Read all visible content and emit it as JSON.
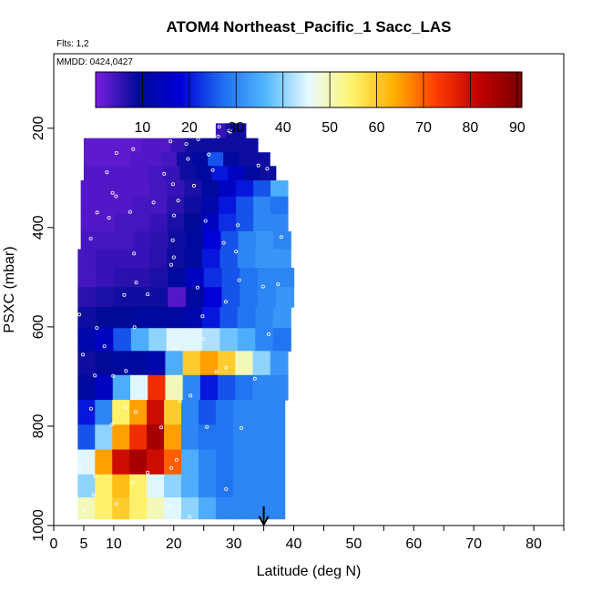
{
  "chart_data": {
    "type": "heatmap",
    "title": "ATOM4 Northeast_Pacific_1 Sacc_LAS",
    "notes": [
      "Flts: 1,2",
      "MMDD: 0424,0427"
    ],
    "xlabel": "Latitude (deg N)",
    "ylabel": "PSXC (mbar)",
    "xlim": [
      0,
      85
    ],
    "ylim": [
      1000,
      50
    ],
    "y_inverted": true,
    "x_ticks": [
      0,
      5,
      10,
      20,
      30,
      40,
      50,
      60,
      70,
      80
    ],
    "y_ticks": [
      200,
      400,
      600,
      800,
      1000
    ],
    "colorbar": {
      "ticks": [
        10,
        20,
        30,
        40,
        50,
        60,
        70,
        80,
        90
      ],
      "range": [
        0,
        91
      ],
      "colors": [
        "#7a1fe0",
        "#000a96",
        "#0000d8",
        "#1e6ff0",
        "#54b8ff",
        "#e8fbff",
        "#fff470",
        "#ffb000",
        "#ff3a00",
        "#c00000",
        "#7a0000"
      ]
    },
    "marker_latitude": 35,
    "layers": [
      {
        "p": 205,
        "lat_start": 27,
        "lat_end": 32,
        "values": [
          5,
          8,
          8
        ]
      },
      {
        "p": 235,
        "lat_start": 5,
        "lat_end": 34,
        "values": [
          2,
          2,
          2,
          2,
          3,
          3,
          5,
          8,
          8,
          8,
          8,
          8
        ]
      },
      {
        "p": 262,
        "lat_start": 5,
        "lat_end": 36,
        "values": [
          2,
          2,
          2,
          3,
          3,
          4,
          8,
          10,
          25,
          10,
          8,
          8
        ]
      },
      {
        "p": 290,
        "lat_start": 5,
        "lat_end": 37,
        "values": [
          3,
          3,
          3,
          3,
          4,
          5,
          8,
          10,
          20,
          15,
          10,
          8
        ]
      },
      {
        "p": 320,
        "lat_start": 4.5,
        "lat_end": 39,
        "values": [
          3,
          3,
          3,
          3,
          4,
          5,
          7,
          10,
          15,
          20,
          25,
          35
        ]
      },
      {
        "p": 355,
        "lat_start": 4.5,
        "lat_end": 39,
        "values": [
          3,
          3,
          3,
          4,
          4,
          6,
          8,
          12,
          20,
          25,
          30,
          28
        ]
      },
      {
        "p": 390,
        "lat_start": 4.5,
        "lat_end": 39,
        "values": [
          3,
          3,
          4,
          4,
          5,
          7,
          9,
          15,
          22,
          25,
          30,
          30
        ]
      },
      {
        "p": 425,
        "lat_start": 4.5,
        "lat_end": 39.5,
        "values": [
          4,
          4,
          4,
          5,
          6,
          8,
          10,
          18,
          25,
          30,
          32,
          30
        ]
      },
      {
        "p": 462,
        "lat_start": 4,
        "lat_end": 39.5,
        "values": [
          4,
          5,
          5,
          5,
          6,
          8,
          10,
          20,
          25,
          30,
          32,
          32
        ]
      },
      {
        "p": 500,
        "lat_start": 4,
        "lat_end": 40,
        "values": [
          4,
          5,
          6,
          6,
          7,
          10,
          15,
          22,
          25,
          28,
          30,
          30
        ]
      },
      {
        "p": 540,
        "lat_start": 4,
        "lat_end": 40,
        "values": [
          6,
          7,
          8,
          8,
          8,
          3,
          10,
          18,
          25,
          28,
          30,
          32
        ]
      },
      {
        "p": 580,
        "lat_start": 4,
        "lat_end": 39.5,
        "values": [
          8,
          9,
          9,
          10,
          10,
          10,
          12,
          20,
          25,
          28,
          30,
          32
        ]
      },
      {
        "p": 625,
        "lat_start": 4,
        "lat_end": 39.5,
        "values": [
          12,
          15,
          25,
          35,
          40,
          45,
          45,
          42,
          38,
          35,
          30,
          28
        ]
      },
      {
        "p": 672,
        "lat_start": 4,
        "lat_end": 39,
        "values": [
          8,
          9,
          10,
          10,
          12,
          35,
          60,
          65,
          60,
          50,
          40,
          32
        ]
      },
      {
        "p": 722,
        "lat_start": 4,
        "lat_end": 39,
        "values": [
          10,
          15,
          35,
          45,
          75,
          50,
          30,
          20,
          25,
          28,
          30,
          30
        ]
      },
      {
        "p": 772,
        "lat_start": 4,
        "lat_end": 38.5,
        "values": [
          20,
          30,
          55,
          65,
          80,
          60,
          30,
          25,
          28,
          30,
          30,
          30
        ]
      },
      {
        "p": 822,
        "lat_start": 4,
        "lat_end": 38.5,
        "values": [
          25,
          40,
          65,
          75,
          85,
          65,
          30,
          28,
          28,
          30,
          30,
          30
        ]
      },
      {
        "p": 872,
        "lat_start": 4,
        "lat_end": 38.5,
        "values": [
          45,
          65,
          80,
          85,
          80,
          70,
          35,
          30,
          28,
          30,
          30,
          30
        ]
      },
      {
        "p": 922,
        "lat_start": 4,
        "lat_end": 38.5,
        "values": [
          40,
          55,
          62,
          55,
          45,
          40,
          35,
          30,
          28,
          30,
          30,
          30
        ]
      },
      {
        "p": 965,
        "lat_start": 4,
        "lat_end": 38.5,
        "values": [
          50,
          55,
          60,
          55,
          50,
          45,
          40,
          35,
          30,
          30,
          30,
          30
        ]
      }
    ]
  }
}
